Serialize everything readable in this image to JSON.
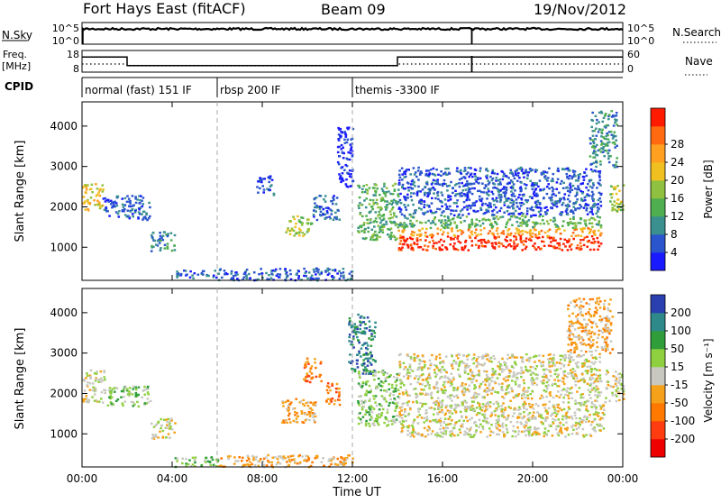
{
  "header": {
    "station": "Fort Hays East (fitACF)",
    "beam": "Beam 09",
    "date": "19/Nov/2012"
  },
  "top_strip": {
    "left_label": "N.Sky",
    "left_ticks": [
      "10^5",
      "10^0"
    ],
    "right_ticks": [
      "10^5",
      "10^0"
    ],
    "right_label": "N.Search",
    "spike_hour": 17.3
  },
  "freq_strip": {
    "left_label_1": "Freq.",
    "left_label_2": "[MHz]",
    "left_ticks": [
      "18",
      "8"
    ],
    "right_ticks": [
      "60",
      "0"
    ],
    "right_label": "Nave",
    "freq_steps": [
      {
        "from": 0,
        "to": 2,
        "value": 15
      },
      {
        "from": 2,
        "to": 14,
        "value": 11
      },
      {
        "from": 14,
        "to": 24,
        "value": 15
      }
    ]
  },
  "cpid": {
    "label": "CPID",
    "segments": [
      {
        "start": 0,
        "text": "normal (fast) 151 IF"
      },
      {
        "start": 6,
        "text": "rbsp 200 IF"
      },
      {
        "start": 12,
        "text": "themis -3300 IF"
      }
    ]
  },
  "chart_data": [
    {
      "type": "heatmap",
      "title": "Power",
      "ylabel": "Slant Range [km]",
      "xlabel": "",
      "xlim": [
        0,
        24
      ],
      "ylim": [
        180,
        4600
      ],
      "yticks": [
        "1000",
        "2000",
        "3000",
        "4000"
      ],
      "colorbar_label": "Power [dB]",
      "colorbar_ticks": [
        "4",
        "8",
        "12",
        "16",
        "20",
        "24",
        "28"
      ],
      "colors": [
        "#1a1aff",
        "#2a55cc",
        "#3a8f8f",
        "#4fae4f",
        "#8fc040",
        "#f0c020",
        "#ffa020",
        "#ff6a10",
        "#ff1a00"
      ],
      "echo_regions": [
        {
          "x": [
            0.0,
            0.9
          ],
          "y": [
            1900,
            2600
          ],
          "level": 5
        },
        {
          "x": [
            0.9,
            3.0
          ],
          "y": [
            1700,
            2300
          ],
          "level": 1
        },
        {
          "x": [
            3.0,
            4.1
          ],
          "y": [
            900,
            1400
          ],
          "level": 2
        },
        {
          "x": [
            4.1,
            6.0
          ],
          "y": [
            250,
            450
          ],
          "level": 1
        },
        {
          "x": [
            6.0,
            12.0
          ],
          "y": [
            200,
            500
          ],
          "level": 1
        },
        {
          "x": [
            7.7,
            8.5
          ],
          "y": [
            2300,
            2800
          ],
          "level": 1
        },
        {
          "x": [
            9.0,
            10.2
          ],
          "y": [
            1300,
            1800
          ],
          "level": 4
        },
        {
          "x": [
            10.2,
            11.4
          ],
          "y": [
            1700,
            2300
          ],
          "level": 1
        },
        {
          "x": [
            11.3,
            12.0
          ],
          "y": [
            2500,
            4000
          ],
          "level": 0
        },
        {
          "x": [
            12.2,
            14.0
          ],
          "y": [
            1200,
            2600
          ],
          "level": 3
        },
        {
          "x": [
            14.0,
            23.0
          ],
          "y": [
            950,
            1300
          ],
          "level": 8
        },
        {
          "x": [
            14.0,
            23.0
          ],
          "y": [
            1300,
            1500
          ],
          "level": 6
        },
        {
          "x": [
            14.0,
            23.0
          ],
          "y": [
            1500,
            1800
          ],
          "level": 3
        },
        {
          "x": [
            14.0,
            23.0
          ],
          "y": [
            1800,
            3000
          ],
          "level": 1
        },
        {
          "x": [
            22.5,
            23.7
          ],
          "y": [
            3000,
            4400
          ],
          "level": 2
        },
        {
          "x": [
            23.4,
            24.0
          ],
          "y": [
            1900,
            2600
          ],
          "level": 4
        }
      ]
    },
    {
      "type": "heatmap",
      "title": "Velocity",
      "ylabel": "Slant Range [km]",
      "xlabel": "Time UT",
      "xlim": [
        0,
        24
      ],
      "ylim": [
        180,
        4600
      ],
      "xticks": [
        "00:00",
        "04:00",
        "08:00",
        "12:00",
        "16:00",
        "20:00",
        "00:00"
      ],
      "yticks": [
        "1000",
        "2000",
        "3000",
        "4000"
      ],
      "colorbar_label": "Velocity [m s⁻¹]",
      "colorbar_ticks": [
        "200",
        "100",
        "50",
        "15",
        "-15",
        "-50",
        "-100",
        "-200"
      ],
      "colors": [
        "#2a3fb0",
        "#2e8a8a",
        "#2f9d3a",
        "#8fd040",
        "#c8c8c0",
        "#f5a21a",
        "#ff7800",
        "#ff3c10",
        "#ee0000"
      ],
      "echo_regions": [
        {
          "x": [
            0.0,
            1.0
          ],
          "y": [
            1800,
            2600
          ],
          "level": 4
        },
        {
          "x": [
            1.0,
            3.0
          ],
          "y": [
            1700,
            2200
          ],
          "level": 3
        },
        {
          "x": [
            3.0,
            4.1
          ],
          "y": [
            900,
            1400
          ],
          "level": 4
        },
        {
          "x": [
            4.1,
            6.0
          ],
          "y": [
            200,
            450
          ],
          "level": 3
        },
        {
          "x": [
            6.0,
            12.0
          ],
          "y": [
            200,
            500
          ],
          "level": 5
        },
        {
          "x": [
            8.8,
            10.4
          ],
          "y": [
            1300,
            1900
          ],
          "level": 5
        },
        {
          "x": [
            9.8,
            10.6
          ],
          "y": [
            2300,
            2900
          ],
          "level": 6
        },
        {
          "x": [
            10.8,
            11.4
          ],
          "y": [
            1700,
            2300
          ],
          "level": 6
        },
        {
          "x": [
            11.8,
            13.0
          ],
          "y": [
            2500,
            4000
          ],
          "level": 1
        },
        {
          "x": [
            12.2,
            14.0
          ],
          "y": [
            1200,
            2600
          ],
          "level": 3
        },
        {
          "x": [
            14.0,
            23.2
          ],
          "y": [
            950,
            1850
          ],
          "level": 4
        },
        {
          "x": [
            14.0,
            23.0
          ],
          "y": [
            1900,
            3000
          ],
          "level": 4
        },
        {
          "x": [
            21.5,
            23.5
          ],
          "y": [
            3000,
            4400
          ],
          "level": 5
        },
        {
          "x": [
            23.2,
            24.0
          ],
          "y": [
            1800,
            2600
          ],
          "level": 4
        }
      ]
    }
  ]
}
